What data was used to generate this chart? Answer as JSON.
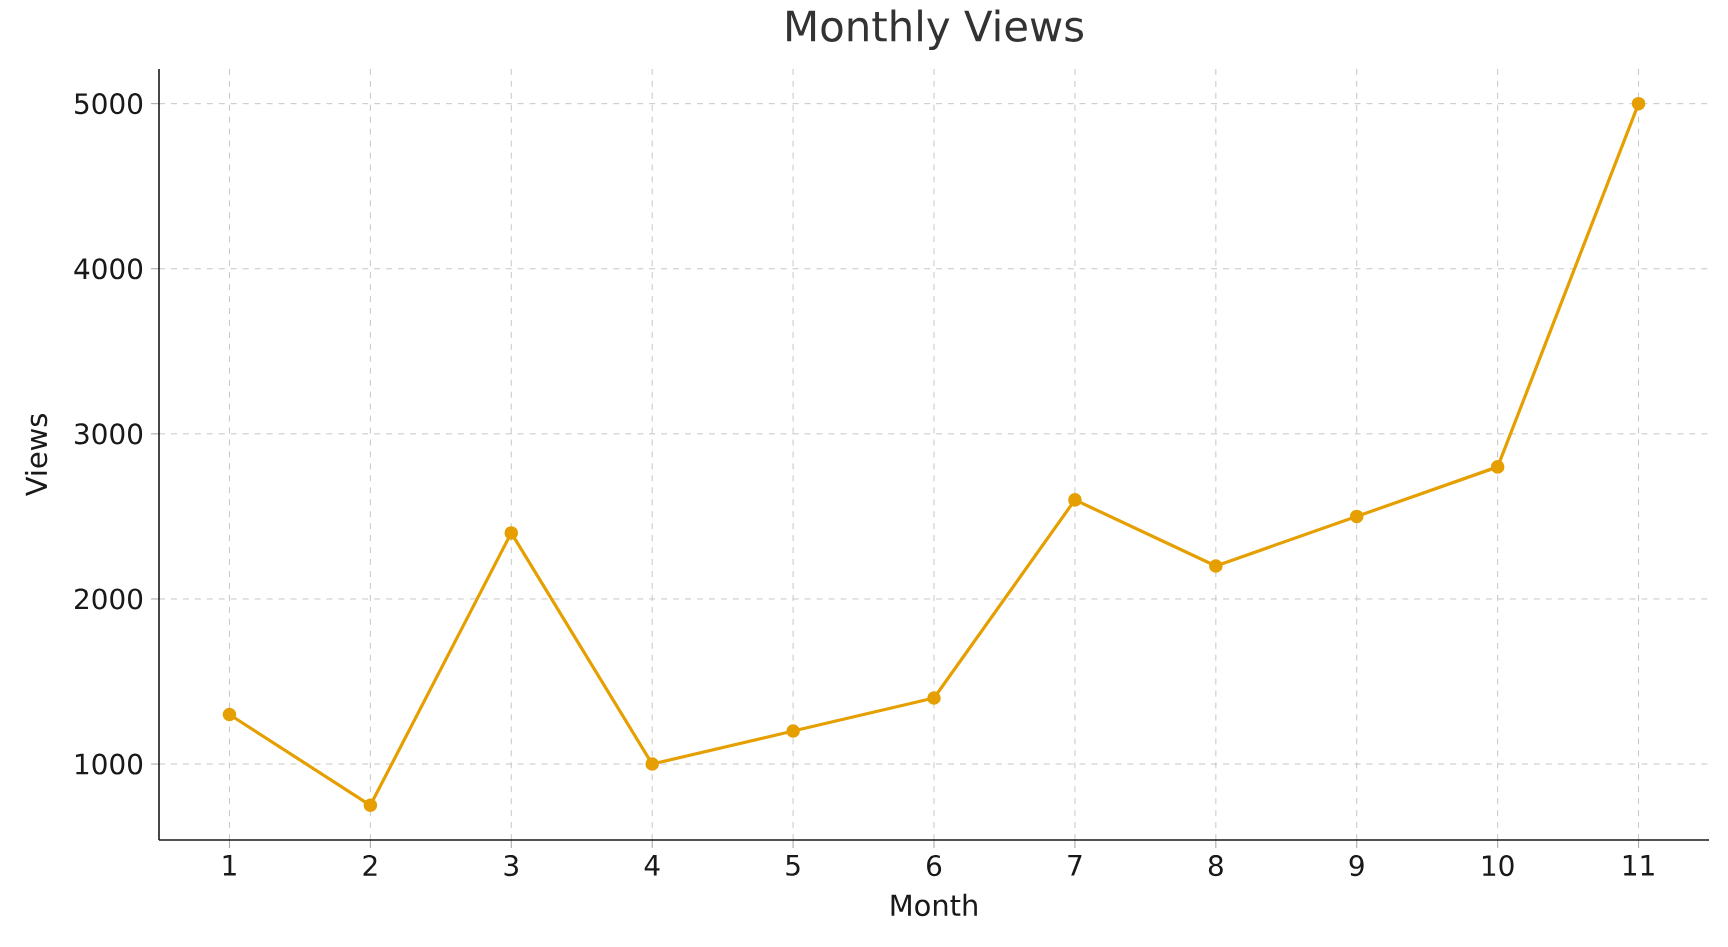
{
  "chart_data": {
    "type": "line",
    "title": "Monthly Views",
    "xlabel": "Month",
    "ylabel": "Views",
    "x": [
      1,
      2,
      3,
      4,
      5,
      6,
      7,
      8,
      9,
      10,
      11
    ],
    "series": [
      {
        "color": "#e69f00",
        "values": [
          1300,
          750,
          2400,
          1000,
          1200,
          1400,
          2600,
          2200,
          2500,
          2800,
          5000
        ]
      }
    ],
    "xlim": [
      0.5,
      11.5
    ],
    "ylim": [
      540,
      5210
    ],
    "xticks": [
      1,
      2,
      3,
      4,
      5,
      6,
      7,
      8,
      9,
      10,
      11
    ],
    "yticks": [
      1000,
      2000,
      3000,
      4000,
      5000
    ],
    "grid": true,
    "marker": "circle",
    "line_style": "solid"
  }
}
